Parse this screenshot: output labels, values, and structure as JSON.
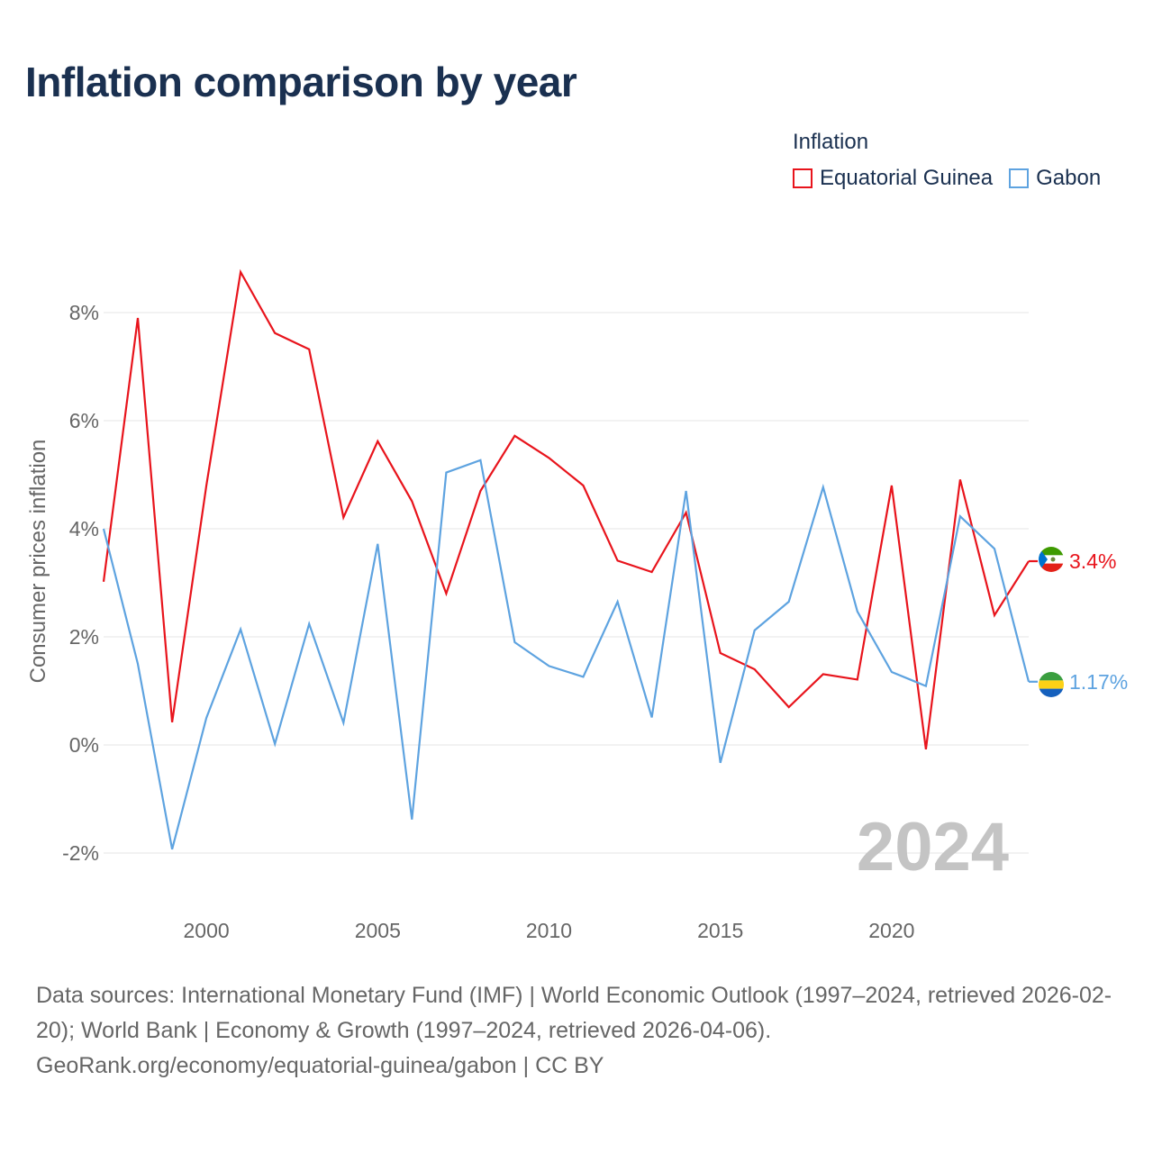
{
  "title": "Inflation comparison by year",
  "legend": {
    "title": "Inflation",
    "items": [
      {
        "label": "Equatorial Guinea",
        "color": "#e8141c"
      },
      {
        "label": "Gabon",
        "color": "#5ea3e0"
      }
    ]
  },
  "chart_data": {
    "type": "line",
    "ylabel": "Consumer prices inflation",
    "xlabel": "",
    "x": [
      1997,
      1998,
      1999,
      2000,
      2001,
      2002,
      2003,
      2004,
      2005,
      2006,
      2007,
      2008,
      2009,
      2010,
      2011,
      2012,
      2013,
      2014,
      2015,
      2016,
      2017,
      2018,
      2019,
      2020,
      2021,
      2022,
      2023,
      2024
    ],
    "xlim": [
      1997,
      2024
    ],
    "ylim": [
      -2.8,
      9.2
    ],
    "yticks": [
      -2,
      0,
      2,
      4,
      6,
      8
    ],
    "ytick_labels": [
      "-2%",
      "0%",
      "2%",
      "4%",
      "6%",
      "8%"
    ],
    "xticks": [
      2000,
      2005,
      2010,
      2015,
      2020
    ],
    "xtick_labels": [
      "2000",
      "2005",
      "2010",
      "2015",
      "2020"
    ],
    "grid": true,
    "watermark_year": "2024",
    "series": [
      {
        "name": "Equatorial Guinea",
        "color": "#e8141c",
        "values": [
          3.02,
          7.9,
          0.42,
          4.8,
          8.75,
          7.62,
          7.32,
          4.21,
          5.62,
          4.51,
          2.8,
          4.7,
          5.72,
          5.31,
          4.8,
          3.41,
          3.2,
          4.3,
          1.7,
          1.4,
          0.7,
          1.31,
          1.21,
          4.8,
          -0.08,
          4.91,
          2.4,
          3.4
        ],
        "end_label": "3.4%"
      },
      {
        "name": "Gabon",
        "color": "#5ea3e0",
        "values": [
          4.0,
          1.5,
          -1.93,
          0.5,
          2.14,
          0.02,
          2.24,
          0.41,
          3.72,
          -1.38,
          5.04,
          5.27,
          1.9,
          1.46,
          1.26,
          2.65,
          0.51,
          4.7,
          -0.33,
          2.12,
          2.65,
          4.77,
          2.47,
          1.35,
          1.09,
          4.23,
          3.63,
          1.17
        ],
        "end_label": "1.17%"
      }
    ]
  },
  "footer": {
    "sources": "Data sources: International Monetary Fund (IMF) | World Economic Outlook (1997–2024, retrieved 2026-02-20); World Bank | Economy & Growth (1997–2024, retrieved 2026-04-06).",
    "attribution": "GeoRank.org/economy/equatorial-guinea/gabon | CC BY"
  }
}
